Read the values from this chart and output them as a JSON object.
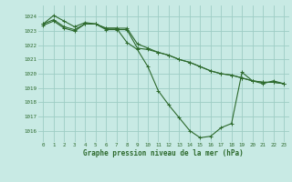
{
  "title": "Graphe pression niveau de la mer (hPa)",
  "bg_color": "#c8eae4",
  "grid_color": "#9dcdc4",
  "line_color": "#2d6a2d",
  "xlim": [
    -0.5,
    23.5
  ],
  "ylim": [
    1015.2,
    1024.8
  ],
  "yticks": [
    1016,
    1017,
    1018,
    1019,
    1020,
    1021,
    1022,
    1023,
    1024
  ],
  "xticks": [
    0,
    1,
    2,
    3,
    4,
    5,
    6,
    7,
    8,
    9,
    10,
    11,
    12,
    13,
    14,
    15,
    16,
    17,
    18,
    19,
    20,
    21,
    22,
    23
  ],
  "series1": [
    1023.5,
    1024.1,
    1023.7,
    1023.3,
    1023.6,
    1023.5,
    1023.2,
    1023.2,
    1023.2,
    1022.1,
    1021.8,
    1021.5,
    1021.3,
    1021.0,
    1020.8,
    1020.5,
    1020.2,
    1020.0,
    1019.9,
    1019.7,
    1019.5,
    1019.4,
    1019.4,
    1019.3
  ],
  "series2": [
    1023.4,
    1023.7,
    1023.2,
    1023.0,
    1023.5,
    1023.5,
    1023.1,
    1023.1,
    1023.1,
    1021.8,
    1021.7,
    1021.5,
    1021.3,
    1021.0,
    1020.8,
    1020.5,
    1020.2,
    1020.0,
    1019.9,
    1019.7,
    1019.5,
    1019.4,
    1019.4,
    1019.3
  ],
  "series3": [
    1023.5,
    1023.8,
    1023.3,
    1023.1,
    1023.5,
    1023.5,
    1023.2,
    1023.2,
    1022.2,
    1021.7,
    1020.5,
    1018.8,
    1017.8,
    1016.9,
    1016.0,
    1015.5,
    1015.6,
    1016.2,
    1016.5,
    1020.1,
    1019.5,
    1019.3,
    1019.5,
    1019.3
  ]
}
